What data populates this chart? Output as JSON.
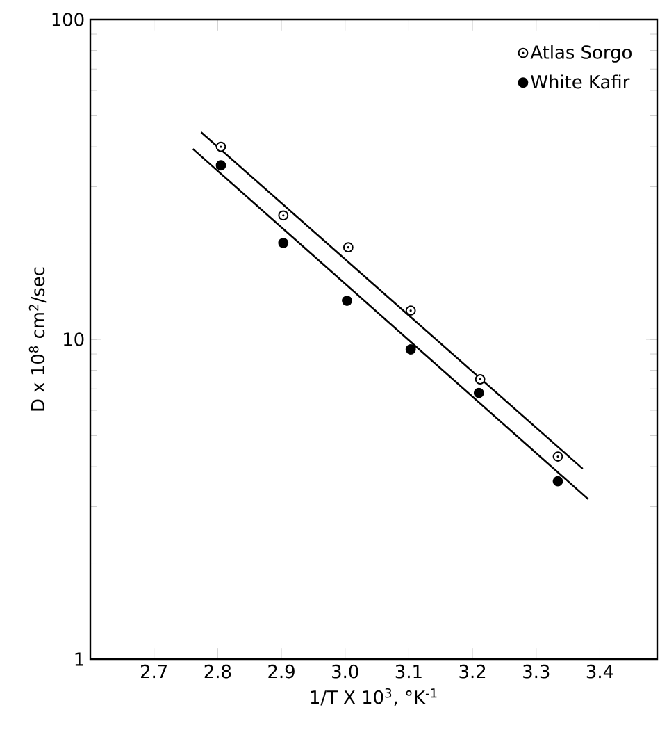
{
  "chart_data": {
    "type": "scatter",
    "xlabel": "1/T X 10$^{3}$, °K$^{-1}$",
    "ylabel": "D x 10$^{8}$ cm$^{2}$/sec",
    "xlim": [
      2.6,
      3.49
    ],
    "ylim": [
      1,
      100
    ],
    "xticks": [
      2.7,
      2.8,
      2.9,
      {
        "value": 3.0,
        "label": "3.0"
      },
      3.1,
      3.2,
      3.3,
      3.4
    ],
    "yticks": [
      1,
      10,
      100
    ],
    "log": "y",
    "grid": false,
    "legend": "top right",
    "series": [
      {
        "name": "Atlas Sorgo",
        "color": "#ffffff",
        "marker": "circle",
        "x": [
          2.805,
          2.903,
          3.005,
          3.103,
          3.212,
          3.334
        ],
        "values": [
          40,
          24.4,
          19.4,
          12.3,
          7.5,
          4.3
        ]
      },
      {
        "name": "White Kafir",
        "color": "#000000",
        "marker": "circle",
        "x": [
          2.805,
          2.903,
          3.003,
          3.103,
          3.21,
          3.334
        ],
        "values": [
          35,
          20,
          13.2,
          9.3,
          6.8,
          3.6
        ]
      },
      {
        "type": "line",
        "color": "#000000",
        "marker": "none",
        "x": [
          2.774,
          3.373
        ],
        "values": [
          44.4,
          3.94
        ]
      },
      {
        "type": "line",
        "color": "#000000",
        "marker": "none",
        "x": [
          2.761,
          3.382
        ],
        "values": [
          39.4,
          3.16
        ]
      }
    ]
  }
}
